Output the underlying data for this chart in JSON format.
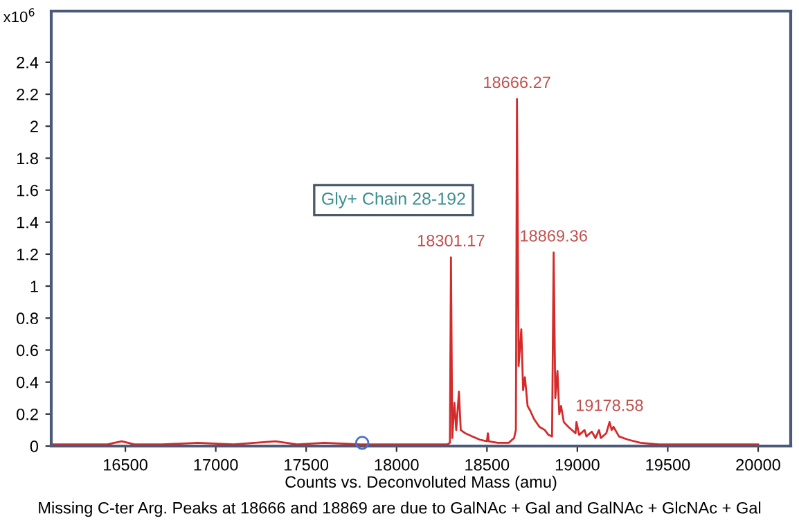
{
  "chart_data": {
    "type": "line",
    "xlabel": "Counts vs. Deconvoluted Mass (amu)",
    "ylabel": "x10$^{6}$",
    "xlim": [
      16090,
      20180
    ],
    "ylim": [
      0,
      2.72
    ],
    "xticks": [
      16500,
      17000,
      17500,
      18000,
      18500,
      19000,
      19500,
      20000
    ],
    "yticks": [
      0,
      0.2,
      0.4,
      0.6,
      0.8,
      1,
      1.2,
      1.4,
      1.6,
      1.8,
      2,
      2.2,
      2.4
    ],
    "grid": false,
    "legend": false,
    "marker": "none",
    "line_style": "solid",
    "series": [
      {
        "color": "#d42a2a",
        "x": [
          16100,
          16200,
          16300,
          16400,
          16480,
          16550,
          16700,
          16900,
          17100,
          17330,
          17450,
          17600,
          17800,
          17950,
          18100,
          18200,
          18280,
          18295,
          18301,
          18308,
          18320,
          18330,
          18345,
          18355,
          18380,
          18420,
          18460,
          18500,
          18505,
          18510,
          18560,
          18620,
          18650,
          18660,
          18666,
          18675,
          18690,
          18700,
          18710,
          18725,
          18740,
          18760,
          18790,
          18820,
          18840,
          18860,
          18869,
          18878,
          18890,
          18900,
          18910,
          18925,
          18950,
          18990,
          18995,
          19010,
          19040,
          19050,
          19080,
          19100,
          19120,
          19130,
          19160,
          19178,
          19190,
          19200,
          19230,
          19280,
          19350,
          19450,
          19600,
          19800,
          20000
        ],
        "values": [
          0.01,
          0.01,
          0.01,
          0.01,
          0.03,
          0.01,
          0.01,
          0.02,
          0.01,
          0.03,
          0.01,
          0.02,
          0.01,
          0.01,
          0.01,
          0.01,
          0.01,
          0.02,
          1.18,
          0.05,
          0.27,
          0.1,
          0.34,
          0.1,
          0.08,
          0.06,
          0.04,
          0.03,
          0.08,
          0.03,
          0.02,
          0.02,
          0.05,
          0.1,
          2.17,
          0.5,
          0.73,
          0.35,
          0.43,
          0.25,
          0.22,
          0.17,
          0.12,
          0.1,
          0.07,
          0.06,
          1.21,
          0.3,
          0.47,
          0.2,
          0.25,
          0.15,
          0.12,
          0.08,
          0.15,
          0.07,
          0.1,
          0.06,
          0.09,
          0.05,
          0.1,
          0.05,
          0.08,
          0.15,
          0.1,
          0.12,
          0.06,
          0.04,
          0.02,
          0.01,
          0.01,
          0.01,
          0.01
        ]
      },
      {
        "type": "scatter",
        "color": "#4a6fd0",
        "marker": "circle",
        "x": [
          17810
        ],
        "values": [
          0.02
        ]
      }
    ],
    "annotations": [
      {
        "text": "18301.17",
        "x": 18301,
        "y": 1.18
      },
      {
        "text": "18666.27",
        "x": 18666,
        "y": 2.17
      },
      {
        "text": "18869.36",
        "x": 18869,
        "y": 1.21
      },
      {
        "text": "19178.58",
        "x": 19178,
        "y": 0.15
      },
      "Gly+ Chain 28-192",
      "Missing C-ter Arg. Peaks at 18666 and 18869 are due to GalNAc + Gal and GalNAc + GlcNAc + Gal"
    ]
  }
}
